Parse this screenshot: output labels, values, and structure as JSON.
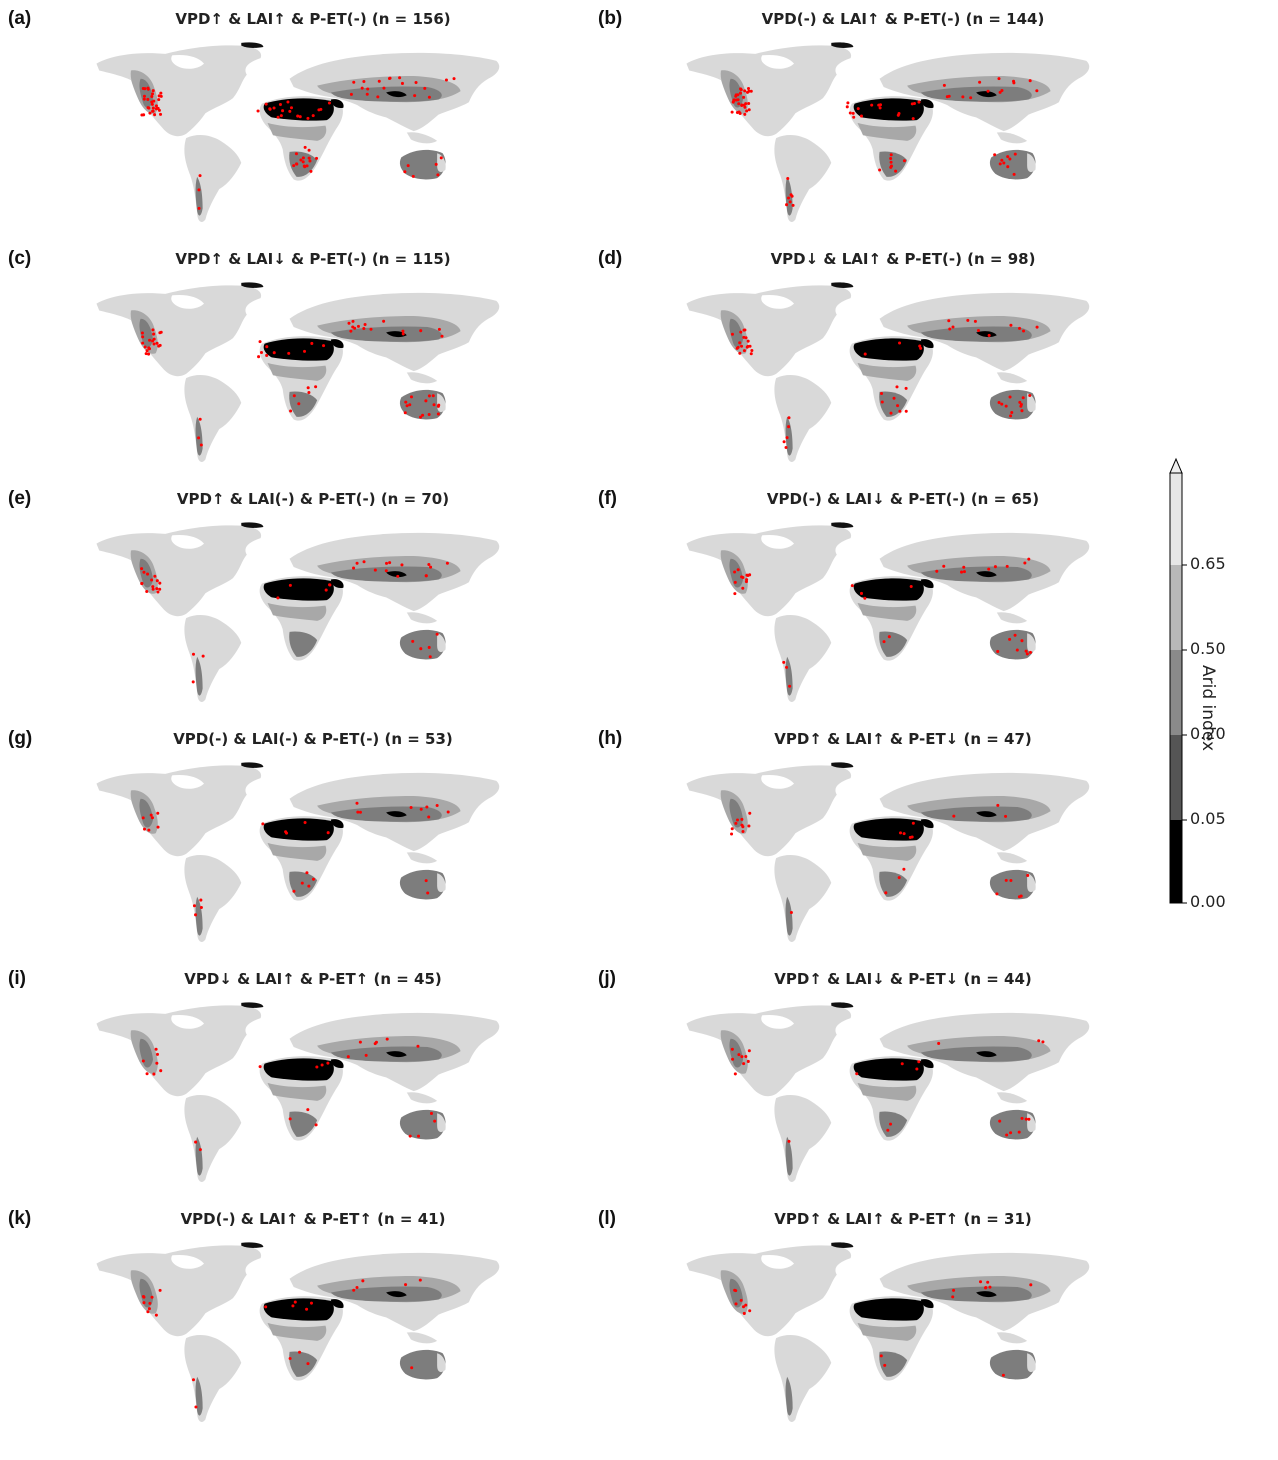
{
  "panels": [
    {
      "letter": "(a)",
      "title": "VPD↑ & LAI↑ & P-ET(-)  (n = 156)",
      "n": 156
    },
    {
      "letter": "(b)",
      "title": "VPD(-) & LAI↑ & P-ET(-)  (n = 144)",
      "n": 144
    },
    {
      "letter": "(c)",
      "title": "VPD↑ & LAI↓ & P-ET(-)  (n = 115)",
      "n": 115
    },
    {
      "letter": "(d)",
      "title": "VPD↓ & LAI↑ & P-ET(-)  (n = 98)",
      "n": 98
    },
    {
      "letter": "(e)",
      "title": "VPD↑ & LAI(-) & P-ET(-)  (n = 70)",
      "n": 70
    },
    {
      "letter": "(f)",
      "title": "VPD(-) & LAI↓ & P-ET(-)  (n = 65)",
      "n": 65
    },
    {
      "letter": "(g)",
      "title": "VPD(-) & LAI(-) & P-ET(-)  (n = 53)",
      "n": 53
    },
    {
      "letter": "(h)",
      "title": "VPD↑ & LAI↑ & P-ET↓  (n = 47)",
      "n": 47
    },
    {
      "letter": "(i)",
      "title": "VPD↓ & LAI↑ & P-ET↑  (n = 45)",
      "n": 45
    },
    {
      "letter": "(j)",
      "title": "VPD↑ & LAI↓ & P-ET↓  (n = 44)",
      "n": 44
    },
    {
      "letter": "(k)",
      "title": "VPD(-) & LAI↑ & P-ET↑  (n = 41)",
      "n": 41
    },
    {
      "letter": "(l)",
      "title": "VPD↑ & LAI↑ & P-ET↑  (n = 31)",
      "n": 31
    }
  ],
  "colorbar": {
    "label": "Arid index",
    "ticks": [
      "0.00",
      "0.05",
      "0.20",
      "0.50",
      "0.65"
    ],
    "colors": [
      "#000000",
      "#4d4d4d",
      "#7a7a7a",
      "#a6a6a6",
      "#d9d9d9"
    ],
    "extend": "max"
  },
  "map_colors": {
    "hyper_arid": "#000000",
    "arid": "#555555",
    "semi_arid": "#7d7d7d",
    "dry_subhumid": "#a8a8a8",
    "humid": "#d9d9d9",
    "point": "#ff0000"
  }
}
